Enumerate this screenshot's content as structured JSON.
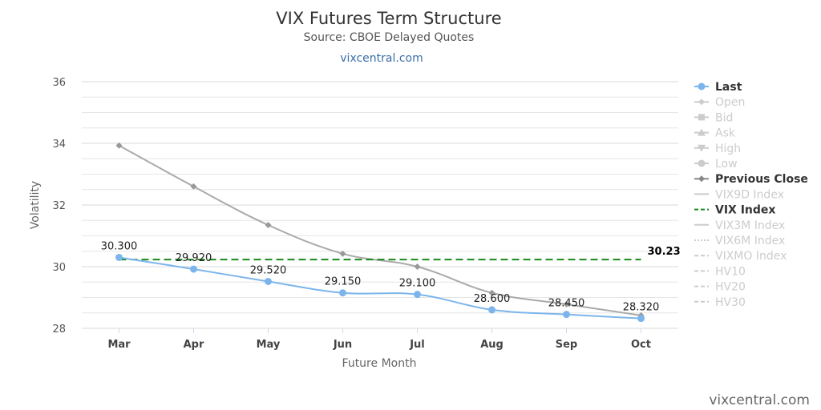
{
  "header": {
    "title": "VIX Futures Term Structure",
    "subtitle": "Source: CBOE Delayed Quotes",
    "link": "vixcentral.com"
  },
  "watermark": "vixcentral.com",
  "colors": {
    "last": "#7cb5ec",
    "previous_close": "#aaaaaa",
    "vix_index": "#1a8a1a",
    "grid": "#e6e6e6",
    "legend_inactive": "#cccccc",
    "legend_active": "#333333"
  },
  "chart_data": {
    "type": "line",
    "title": "VIX Futures Term Structure",
    "subtitle": "Source: CBOE Delayed Quotes",
    "xlabel": "Future Month",
    "ylabel": "Volatility",
    "ylim": [
      28,
      36
    ],
    "yticks": [
      28,
      30,
      32,
      34,
      36
    ],
    "grid": true,
    "legend_position": "right",
    "categories": [
      "Mar",
      "Apr",
      "May",
      "Jun",
      "Jul",
      "Aug",
      "Sep",
      "Oct"
    ],
    "series": [
      {
        "name": "Last",
        "values": [
          30.3,
          29.92,
          29.52,
          29.15,
          29.1,
          28.6,
          28.45,
          28.32
        ],
        "labels": [
          "30.300",
          "29.920",
          "29.520",
          "29.150",
          "29.100",
          "28.600",
          "28.450",
          "28.320"
        ]
      },
      {
        "name": "Previous Close",
        "values": [
          33.93,
          32.6,
          31.35,
          30.42,
          30.0,
          29.15,
          28.78,
          28.42
        ]
      },
      {
        "name": "VIX Index",
        "value": 30.23,
        "label": "30.23",
        "style": "dashed"
      }
    ],
    "legend": [
      {
        "name": "Last",
        "active": true,
        "marker": "circle"
      },
      {
        "name": "Open",
        "active": false,
        "marker": "diamond"
      },
      {
        "name": "Bid",
        "active": false,
        "marker": "square"
      },
      {
        "name": "Ask",
        "active": false,
        "marker": "triangle"
      },
      {
        "name": "High",
        "active": false,
        "marker": "triangle-down"
      },
      {
        "name": "Low",
        "active": false,
        "marker": "circle"
      },
      {
        "name": "Previous Close",
        "active": true,
        "marker": "diamond"
      },
      {
        "name": "VIX9D Index",
        "active": false,
        "marker": "solid"
      },
      {
        "name": "VIX Index",
        "active": true,
        "marker": "dash"
      },
      {
        "name": "VIX3M Index",
        "active": false,
        "marker": "solid"
      },
      {
        "name": "VIX6M Index",
        "active": false,
        "marker": "dot"
      },
      {
        "name": "VIXMO Index",
        "active": false,
        "marker": "dash"
      },
      {
        "name": "HV10",
        "active": false,
        "marker": "dash"
      },
      {
        "name": "HV20",
        "active": false,
        "marker": "dash"
      },
      {
        "name": "HV30",
        "active": false,
        "marker": "dash"
      }
    ]
  }
}
